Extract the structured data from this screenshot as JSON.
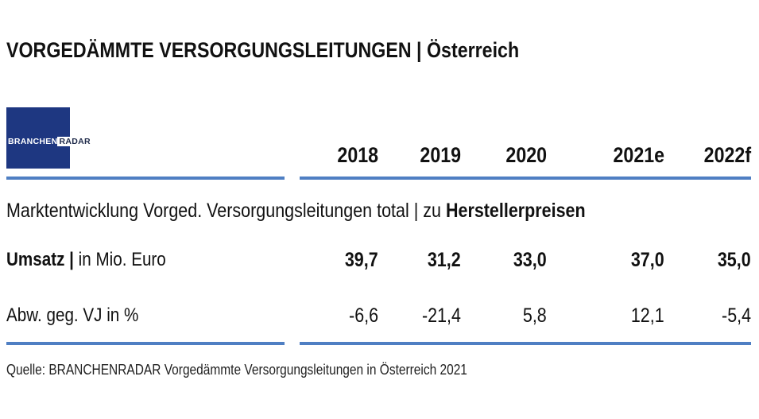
{
  "header": {
    "title": "VORGEDÄMMTE VERSORGUNGSLEITUNGEN | Österreich"
  },
  "logo": {
    "part1": "BRANCHEN",
    "part2": "RADAR"
  },
  "table": {
    "columns": [
      "2018",
      "2019",
      "2020",
      "2021e",
      "2022f"
    ],
    "subtitle": {
      "text": "Marktentwicklung Vorged. Versorgungsleitungen total | zu ",
      "emphasis": "Herstellerpreisen"
    },
    "rows": [
      {
        "label_bold": "Umsatz |",
        "label": "in Mio. Euro",
        "values": [
          "39,7",
          "31,2",
          "33,0",
          "37,0",
          "35,0"
        ]
      },
      {
        "label": "Abw. geg. VJ in %",
        "values": [
          "-6,6",
          "-21,4",
          "5,8",
          "12,1",
          "-5,4"
        ]
      }
    ]
  },
  "source": "Quelle: BRANCHENRADAR Vorgedämmte Versorgungsleitungen in Österreich 2021"
}
